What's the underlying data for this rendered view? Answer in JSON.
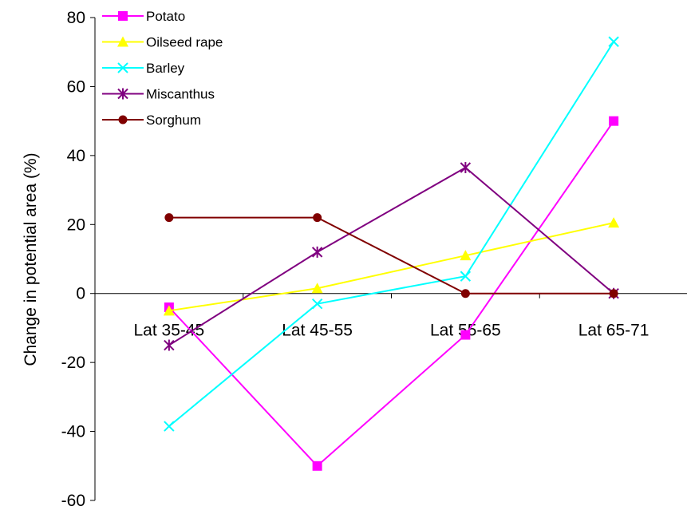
{
  "chart_data": {
    "type": "line",
    "title": "",
    "xlabel": "",
    "ylabel": "Change in potential area (%)",
    "categories": [
      "Lat 35-45",
      "Lat 45-55",
      "Lat 55-65",
      "Lat 65-71"
    ],
    "ylim": [
      -60,
      80
    ],
    "yticks": [
      -60,
      -40,
      -20,
      0,
      20,
      40,
      60,
      80
    ],
    "grid": false,
    "legend_position": "top-left",
    "series": [
      {
        "name": "Potato",
        "color": "#ff00ff",
        "marker": "square",
        "values": [
          -4,
          -50,
          -12,
          50
        ]
      },
      {
        "name": "Oilseed rape",
        "color": "#ffff00",
        "marker": "triangle",
        "values": [
          -5,
          1.5,
          11,
          20.5
        ]
      },
      {
        "name": "Barley",
        "color": "#00ffff",
        "marker": "x",
        "values": [
          -38.5,
          -3,
          5,
          73
        ]
      },
      {
        "name": "Miscanthus",
        "color": "#800080",
        "marker": "asterisk",
        "values": [
          -15,
          12,
          36.5,
          0
        ]
      },
      {
        "name": "Sorghum",
        "color": "#800000",
        "marker": "circle",
        "values": [
          22,
          22,
          0,
          0
        ]
      }
    ]
  }
}
